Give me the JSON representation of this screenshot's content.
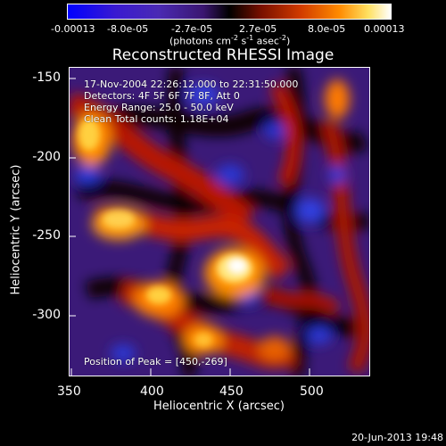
{
  "colorbar": {
    "ticks": [
      "-0.00013",
      "-8.0e-05",
      "-2.7e-05",
      "2.7e-05",
      "8.0e-05",
      "0.00013"
    ],
    "units_prefix": "(photons cm",
    "units_exp1": "-2",
    "units_mid": " s",
    "units_exp2": "-1",
    "units_mid2": " asec",
    "units_exp3": "-2",
    "units_suffix": ")"
  },
  "title": "Reconstructed RHESSI Image",
  "info": {
    "time_range": "17-Nov-2004 22:26:12.000 to 22:31:50.000",
    "detectors": "Detectors: 4F 5F 6F 7F 8F, Att 0",
    "energy": "Energy Range: 25.0 - 50.0 keV",
    "clean": "Clean    Total counts: 1.18E+04",
    "peak": "Position of Peak = [450,-269]"
  },
  "axes": {
    "y_ticks": [
      "-150",
      "-200",
      "-250",
      "-300"
    ],
    "x_ticks": [
      "350",
      "400",
      "450",
      "500"
    ],
    "xlabel": "Heliocentric X (arcsec)",
    "ylabel": "Heliocentric Y (arcsec)",
    "xlim": [
      348,
      538
    ],
    "ylim": [
      -337,
      -141
    ]
  },
  "footer": "20-Jun-2013 19:48",
  "colors": {
    "background": "#000000",
    "text": "#ffffff"
  }
}
